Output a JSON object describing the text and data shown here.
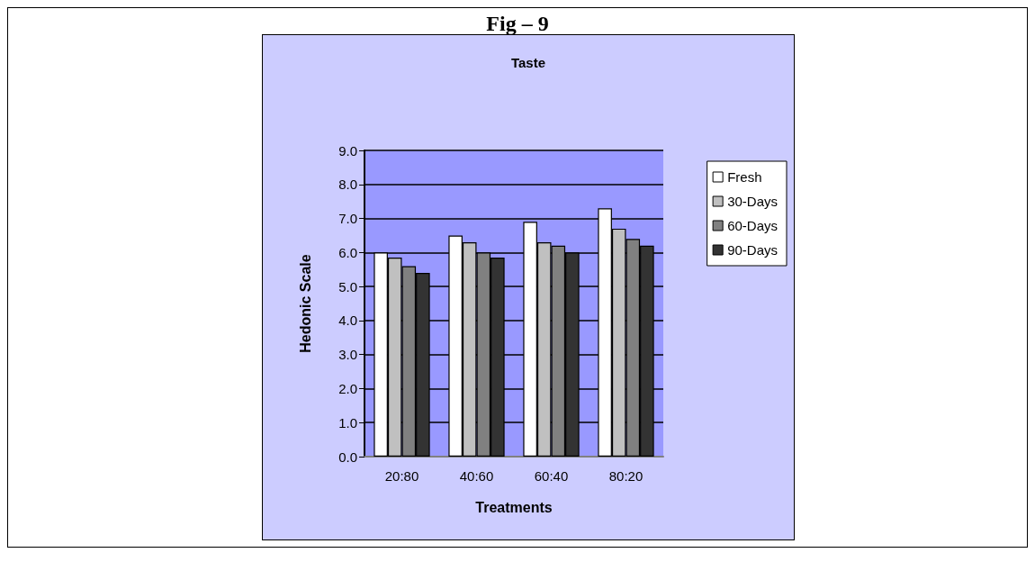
{
  "chart_data": {
    "type": "bar",
    "title": "Fig – 9",
    "subtitle": "Taste",
    "xlabel": "Treatments",
    "ylabel": "Hedonic Scale",
    "categories": [
      "20:80",
      "40:60",
      "60:40",
      "80:20"
    ],
    "series": [
      {
        "name": "Fresh",
        "color": "#ffffff",
        "values": [
          6.0,
          6.5,
          6.9,
          7.3
        ]
      },
      {
        "name": "30-Days",
        "color": "#c0c0c0",
        "values": [
          5.85,
          6.3,
          6.3,
          6.7
        ]
      },
      {
        "name": "60-Days",
        "color": "#808080",
        "values": [
          5.6,
          6.0,
          6.2,
          6.4
        ]
      },
      {
        "name": "90-Days",
        "color": "#333333",
        "values": [
          5.4,
          5.85,
          6.0,
          6.2
        ]
      }
    ],
    "ylim": [
      0,
      9
    ],
    "yticks": [
      {
        "value": 0,
        "label": "0.0"
      },
      {
        "value": 1,
        "label": "1.0"
      },
      {
        "value": 2,
        "label": "2.0"
      },
      {
        "value": 3,
        "label": "3.0"
      },
      {
        "value": 4,
        "label": "4.0"
      },
      {
        "value": 5,
        "label": "5.0"
      },
      {
        "value": 6,
        "label": "6.0"
      },
      {
        "value": 7,
        "label": "7.0"
      },
      {
        "value": 8,
        "label": "8.0"
      },
      {
        "value": 9,
        "label": "9.0"
      }
    ],
    "grid": "y",
    "legend": "right"
  }
}
